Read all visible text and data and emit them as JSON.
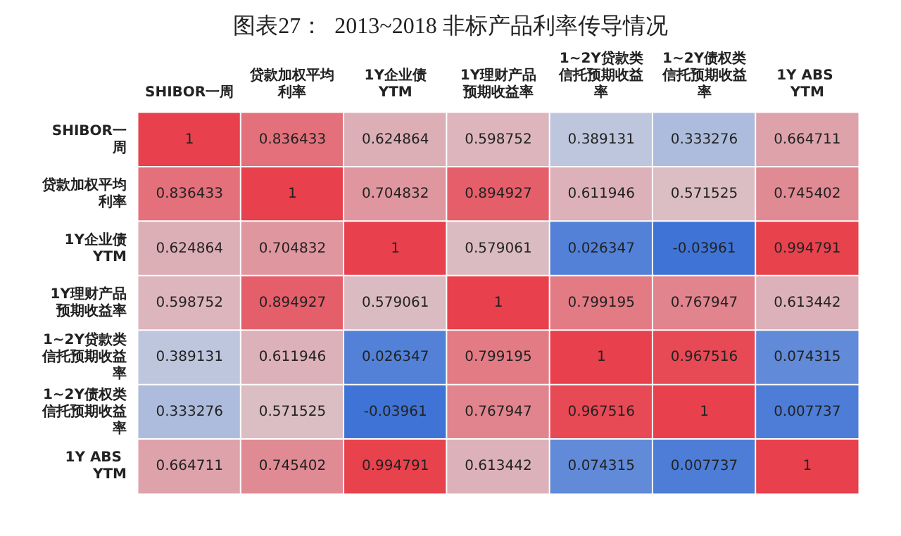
{
  "chart_data": {
    "type": "heatmap",
    "title": "图表27：  2013~2018 非标产品利率传导情况",
    "categories": [
      "SHIBOR一周",
      "贷款加权平均利率",
      "1Y企业债YTM",
      "1Y理财产品预期收益率",
      "1~2Y贷款类信托预期收益率",
      "1~2Y债权类信托预期收益率",
      "1Y ABS YTM"
    ],
    "y_categories": [
      "SHIBOR一周",
      "贷款加权平均利率",
      "1Y企业债YTM",
      "1Y理财产品预期收益率",
      "1~2Y贷款类信托预期收益率",
      "1~2Y债权类信托预期收益率",
      "1Y ABS YTM"
    ],
    "cells": [
      [
        1,
        0.836433,
        0.624864,
        0.598752,
        0.389131,
        0.333276,
        0.664711
      ],
      [
        0.836433,
        1,
        0.704832,
        0.894927,
        0.611946,
        0.571525,
        0.745402
      ],
      [
        0.624864,
        0.704832,
        1,
        0.579061,
        0.026347,
        -0.03961,
        0.994791
      ],
      [
        0.598752,
        0.894927,
        0.579061,
        1,
        0.799195,
        0.767947,
        0.613442
      ],
      [
        0.389131,
        0.611946,
        0.026347,
        0.799195,
        1,
        0.967516,
        0.074315
      ],
      [
        0.333276,
        0.571525,
        -0.03961,
        0.767947,
        0.967516,
        1,
        0.007737
      ],
      [
        0.664711,
        0.745402,
        0.994791,
        0.613442,
        0.074315,
        0.007737,
        1
      ]
    ],
    "data_labels": true
  }
}
